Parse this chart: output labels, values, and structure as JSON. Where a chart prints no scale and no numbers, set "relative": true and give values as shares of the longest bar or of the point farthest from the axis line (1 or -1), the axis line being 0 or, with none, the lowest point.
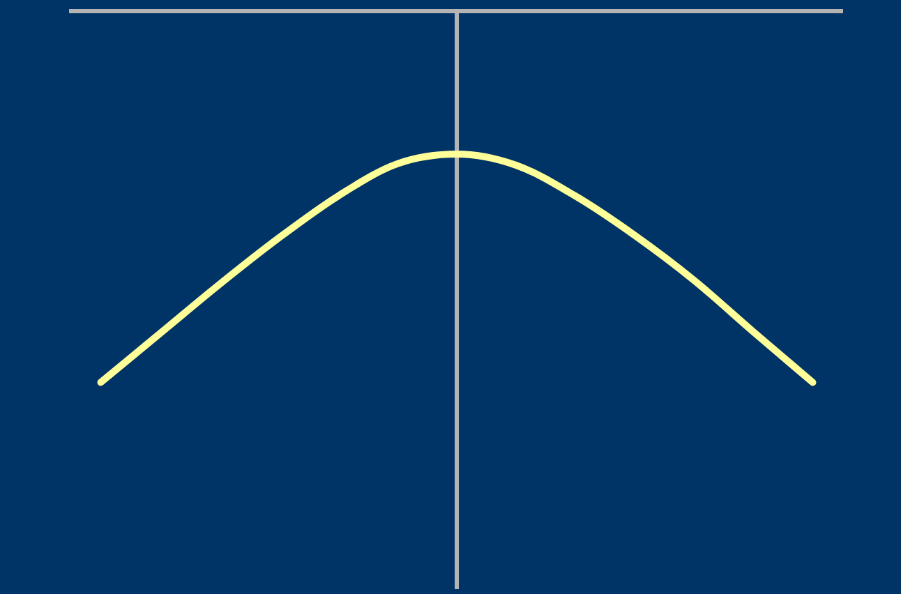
{
  "chart_data": {
    "type": "line",
    "relative": true,
    "categories": [
      null,
      null,
      null,
      null,
      null,
      null,
      null,
      null,
      null,
      null,
      null,
      null,
      null
    ],
    "series": [
      {
        "color": "#ffff99",
        "values": [
          -1,
          -0.868,
          -0.736,
          -0.611,
          -0.498,
          -0.411,
          -0.385,
          -0.415,
          -0.498,
          -0.604,
          -0.725,
          -0.864,
          -1
        ]
      }
    ],
    "grid": false,
    "legend": false,
    "marker": "none",
    "line_style": "solid"
  }
}
